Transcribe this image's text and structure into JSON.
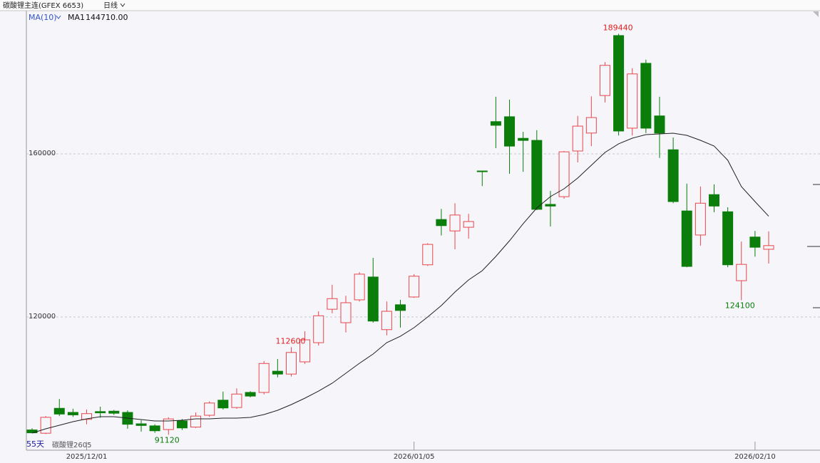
{
  "chart_data": {
    "type": "candlestick",
    "title": "碳酸锂主连(GFEX 6653)",
    "period": "日线",
    "indicator": "MA(10)",
    "bar_count_label": "55天",
    "contract": "碳酸锂2605",
    "categories": [
      null,
      null,
      null,
      null,
      "2025/12/01",
      null,
      null,
      null,
      null,
      null,
      null,
      null,
      null,
      null,
      null,
      null,
      null,
      null,
      null,
      null,
      null,
      null,
      null,
      null,
      null,
      null,
      null,
      null,
      "2026/01/05",
      null,
      null,
      null,
      null,
      null,
      null,
      null,
      null,
      null,
      null,
      null,
      null,
      null,
      null,
      null,
      null,
      null,
      null,
      null,
      null,
      null,
      null,
      null,
      null,
      "2026/02/10",
      null
    ],
    "open": [
      92300,
      91500,
      97600,
      96600,
      94900,
      96800,
      96900,
      96600,
      93800,
      93300,
      92400,
      94500,
      93000,
      95900,
      99600,
      97800,
      101500,
      101500,
      106700,
      106000,
      109000,
      113700,
      121900,
      118600,
      124200,
      129800,
      116900,
      123000,
      124900,
      132800,
      143900,
      141100,
      142000,
      155800,
      167900,
      169100,
      163800,
      163300,
      147600,
      149500,
      160700,
      165100,
      174300,
      189000,
      166300,
      182200,
      169300,
      161000,
      146000,
      140100,
      150000,
      145800,
      128900,
      139600,
      136600
    ],
    "high": [
      92700,
      95700,
      99880,
      97500,
      97300,
      98000,
      97200,
      97100,
      94700,
      93700,
      95400,
      95000,
      96600,
      99300,
      101700,
      102500,
      101800,
      109200,
      109700,
      112600,
      116500,
      121400,
      127900,
      125200,
      131000,
      134500,
      123800,
      124200,
      130500,
      138100,
      146500,
      147900,
      145300,
      155800,
      174000,
      173300,
      165400,
      165800,
      150900,
      160700,
      169300,
      174100,
      182500,
      189440,
      181000,
      183100,
      174000,
      164000,
      152700,
      152000,
      152500,
      146900,
      138500,
      141100,
      141000
    ],
    "low": [
      91500,
      91300,
      95700,
      95500,
      93700,
      95300,
      96000,
      92600,
      91900,
      91600,
      91120,
      92300,
      92800,
      95500,
      97300,
      97500,
      100300,
      101000,
      105200,
      105400,
      108500,
      113000,
      120900,
      116200,
      123800,
      118600,
      115500,
      117400,
      124700,
      132500,
      140000,
      136600,
      139200,
      152100,
      161400,
      155100,
      155600,
      146200,
      142200,
      149000,
      157900,
      161900,
      172600,
      164500,
      164500,
      165100,
      159000,
      147900,
      132200,
      137500,
      145700,
      132200,
      124100,
      134800,
      133100
    ],
    "close": [
      91600,
      95400,
      96200,
      96000,
      96300,
      96500,
      96400,
      93700,
      93400,
      92100,
      95000,
      92800,
      95700,
      98900,
      97700,
      101100,
      100600,
      108600,
      106000,
      111300,
      114400,
      120300,
      124500,
      123500,
      130500,
      119000,
      121400,
      121600,
      130000,
      137800,
      142400,
      145000,
      143400,
      155800,
      167000,
      161900,
      163300,
      146400,
      147200,
      160500,
      166800,
      168900,
      181700,
      165600,
      179600,
      166300,
      165100,
      148300,
      132400,
      147900,
      147200,
      132800,
      132900,
      137100,
      137500
    ],
    "up_color": "#e8474c",
    "down_color": "#0a7d0a",
    "series": [
      {
        "name": "MA1",
        "color": "#222222",
        "values": [
          91530,
          92580,
          93450,
          94320,
          95020,
          95550,
          95550,
          95200,
          94850,
          94500,
          94500,
          94670,
          95020,
          95020,
          95200,
          95200,
          95370,
          96070,
          97120,
          98520,
          100090,
          101830,
          103760,
          106200,
          108650,
          110920,
          113710,
          115280,
          117380,
          120000,
          122790,
          126110,
          129080,
          131350,
          134850,
          138690,
          142880,
          146720,
          149520,
          151440,
          154060,
          157210,
          160350,
          162450,
          163840,
          164720,
          164890,
          165060,
          164540,
          163320,
          161920,
          158430,
          151970,
          148300,
          144710
        ],
        "value_labels": [
          null,
          null,
          null,
          null,
          null,
          null,
          null,
          null,
          null,
          null,
          null,
          null,
          null,
          null,
          null,
          null,
          null,
          null,
          null,
          null,
          null,
          null,
          null,
          null,
          null,
          null,
          null,
          null,
          null,
          null,
          null,
          null,
          null,
          null,
          null,
          null,
          null,
          null,
          null,
          null,
          null,
          null,
          null,
          null,
          null,
          null,
          null,
          null,
          null,
          null,
          null,
          null,
          null,
          null,
          "144710.00"
        ]
      }
    ],
    "ylim": [
      87340,
      195280
    ],
    "yticks": [
      120000,
      160000
    ],
    "grid": true
  }
}
